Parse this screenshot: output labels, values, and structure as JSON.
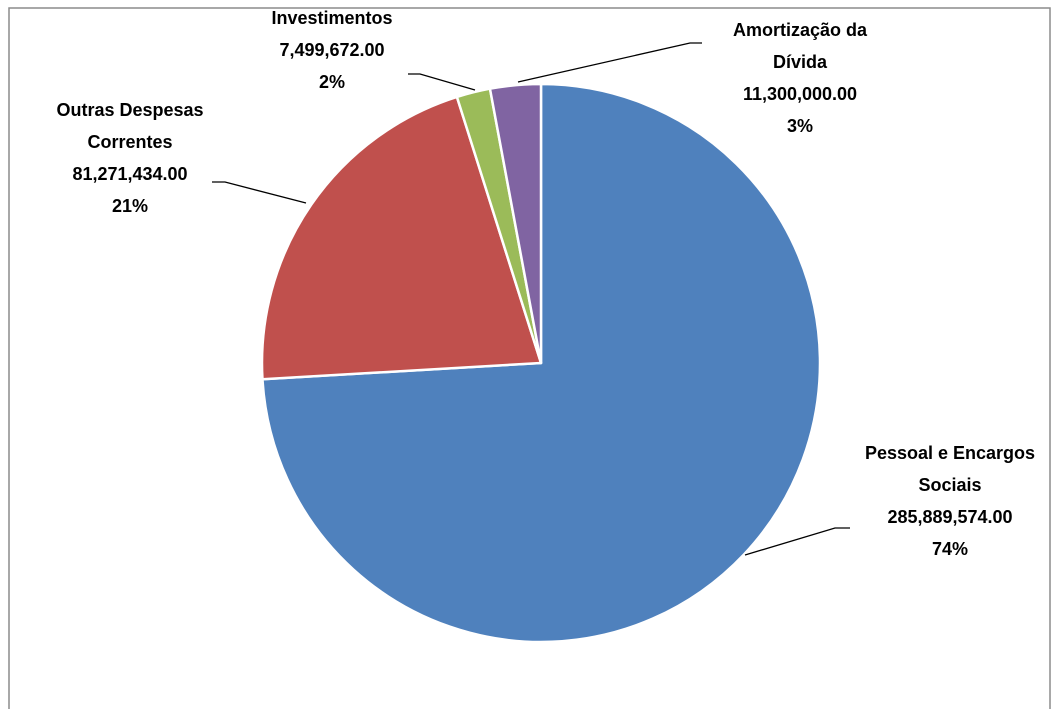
{
  "chart_data": {
    "type": "pie",
    "categories": [
      "Pessoal e Encargos Sociais",
      "Outras Despesas Correntes",
      "Investimentos",
      "Amortização da Dívida"
    ],
    "values": [
      285889574,
      81271434,
      7499672,
      11300000
    ],
    "value_labels": [
      "285,889,574.00",
      "81,271,434.00",
      "7,499,672.00",
      "11,300,000.00"
    ],
    "percentages": [
      74,
      21,
      2,
      3
    ],
    "percentage_labels": [
      "74%",
      "21%",
      "2%",
      "3%"
    ],
    "colors": [
      "#4f81bd",
      "#c0504d",
      "#9bbb59",
      "#8064a2"
    ]
  }
}
